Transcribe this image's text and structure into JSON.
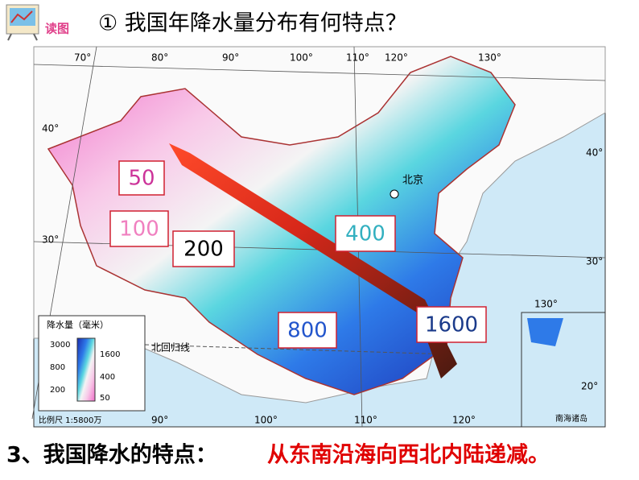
{
  "header": {
    "icon_label": "读图",
    "title": "① 我国年降水量分布有何特点？"
  },
  "map": {
    "value_boxes": [
      "50",
      "100",
      "200",
      "400",
      "800",
      "1600"
    ],
    "grid_labels": [
      "70°",
      "80°",
      "90°",
      "100°",
      "110°",
      "120°",
      "130°",
      "40°",
      "40°",
      "30°",
      "30°",
      "20°",
      "130°",
      "90°",
      "100°",
      "110°",
      "120°"
    ],
    "place_labels": [
      "北京",
      "北回归线"
    ],
    "legend": {
      "title": "降水量（毫米）",
      "levels": [
        "3000",
        "1600",
        "800",
        "400",
        "200",
        "50"
      ]
    },
    "scale": "比例尺 1:5800万",
    "inset": "南海诸岛"
  },
  "footer": {
    "lead": "3、我国降水的特点：",
    "conclusion": "从东南沿海向西北内陆递减。"
  }
}
